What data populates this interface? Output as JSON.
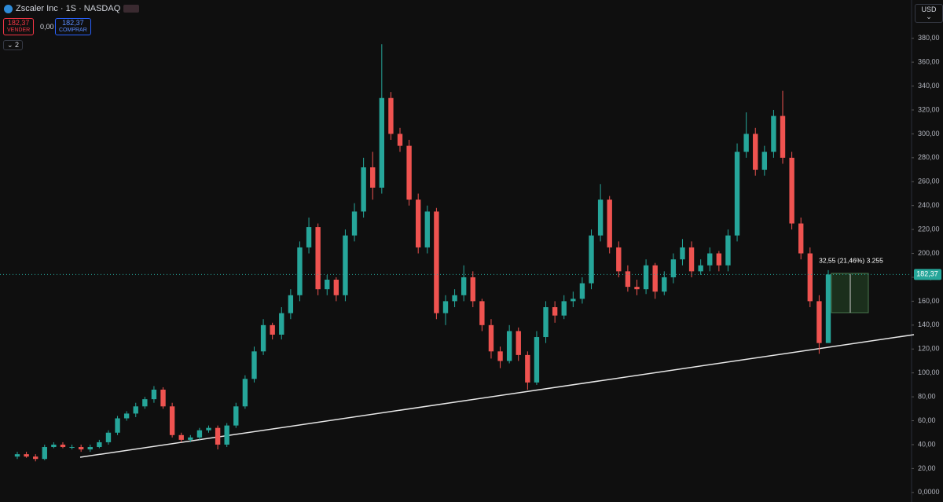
{
  "header": {
    "title": "Zscaler Inc · 1S · NASDAQ",
    "sell_price": "182,37",
    "sell_label": "VENDER",
    "spread": "0,00",
    "buy_price": "182,37",
    "buy_label": "COMPRAR",
    "indicators": "2",
    "currency": "USD"
  },
  "chart_data": {
    "type": "candlestick",
    "up_color": "#26a69a",
    "down_color": "#ef5350",
    "open": [
      30,
      32,
      30,
      28,
      38,
      40,
      38,
      38,
      36,
      38,
      42,
      50,
      62,
      66,
      72,
      78,
      86,
      72,
      48,
      44,
      46,
      52,
      54,
      40,
      56,
      72,
      95,
      118,
      140,
      132,
      150,
      165,
      205,
      222,
      170,
      178,
      165,
      215,
      235,
      272,
      255,
      330,
      300,
      290,
      245,
      205,
      235,
      150,
      160,
      165,
      180,
      160,
      140,
      118,
      110,
      135,
      115,
      92,
      130,
      155,
      148,
      160,
      162,
      175,
      215,
      245,
      205,
      185,
      172,
      170,
      190,
      168,
      180,
      195,
      205,
      185,
      190,
      200,
      190,
      215,
      285,
      300,
      270,
      285,
      315,
      280,
      225,
      200,
      160,
      125
    ],
    "high": [
      34,
      34,
      32,
      40,
      42,
      42,
      40,
      40,
      40,
      44,
      52,
      64,
      68,
      75,
      80,
      89,
      88,
      75,
      50,
      48,
      54,
      56,
      56,
      58,
      75,
      98,
      122,
      145,
      142,
      155,
      170,
      210,
      230,
      225,
      182,
      180,
      220,
      242,
      280,
      285,
      375,
      335,
      305,
      295,
      250,
      240,
      238,
      165,
      170,
      190,
      185,
      162,
      145,
      122,
      140,
      138,
      118,
      135,
      160,
      160,
      165,
      168,
      180,
      220,
      258,
      248,
      210,
      190,
      178,
      195,
      192,
      185,
      200,
      212,
      210,
      195,
      205,
      202,
      220,
      292,
      318,
      305,
      290,
      320,
      336,
      285,
      230,
      205,
      165,
      186
    ],
    "low": [
      28,
      29,
      26,
      27,
      37,
      37,
      36,
      34,
      34,
      37,
      40,
      48,
      60,
      63,
      70,
      75,
      70,
      46,
      42,
      42,
      44,
      50,
      36,
      38,
      54,
      70,
      92,
      115,
      128,
      128,
      145,
      160,
      200,
      165,
      165,
      160,
      160,
      210,
      230,
      245,
      250,
      295,
      285,
      240,
      200,
      200,
      145,
      140,
      155,
      160,
      155,
      135,
      112,
      104,
      108,
      110,
      86,
      90,
      125,
      142,
      145,
      155,
      158,
      170,
      210,
      200,
      180,
      168,
      165,
      166,
      162,
      165,
      175,
      190,
      180,
      182,
      185,
      185,
      185,
      210,
      280,
      265,
      265,
      280,
      275,
      220,
      195,
      155,
      116,
      128
    ],
    "close": [
      32,
      30,
      28,
      38,
      40,
      38,
      38,
      36,
      38,
      42,
      50,
      62,
      66,
      72,
      78,
      86,
      72,
      48,
      44,
      46,
      52,
      54,
      40,
      56,
      72,
      95,
      118,
      140,
      132,
      150,
      165,
      205,
      222,
      170,
      178,
      165,
      215,
      235,
      272,
      255,
      330,
      300,
      290,
      245,
      205,
      235,
      150,
      160,
      165,
      180,
      160,
      140,
      118,
      110,
      135,
      115,
      92,
      130,
      155,
      148,
      160,
      162,
      175,
      215,
      245,
      205,
      185,
      172,
      170,
      190,
      168,
      180,
      195,
      205,
      185,
      190,
      200,
      190,
      215,
      285,
      300,
      270,
      285,
      315,
      280,
      225,
      200,
      160,
      125,
      182.37
    ],
    "last_price": {
      "value": 182.37,
      "label": "182,37"
    },
    "measure_label": "32,55 (21,46%) 3.255",
    "ylim": [
      -8,
      412
    ],
    "yticks": [
      {
        "value": 0,
        "label": "0,0000"
      },
      {
        "value": 20,
        "label": "20,00"
      },
      {
        "value": 40,
        "label": "40,00"
      },
      {
        "value": 60,
        "label": "60,00"
      },
      {
        "value": 80,
        "label": "80,00"
      },
      {
        "value": 100,
        "label": "100,00"
      },
      {
        "value": 120,
        "label": "120,00"
      },
      {
        "value": 140,
        "label": "140,00"
      },
      {
        "value": 160,
        "label": "160,00"
      },
      {
        "value": 180,
        "label": "180,00"
      },
      {
        "value": 200,
        "label": "200,00"
      },
      {
        "value": 220,
        "label": "220,00"
      },
      {
        "value": 240,
        "label": "240,00"
      },
      {
        "value": 260,
        "label": "260,00"
      },
      {
        "value": 280,
        "label": "280,00"
      },
      {
        "value": 300,
        "label": "300,00"
      },
      {
        "value": 320,
        "label": "320,00"
      },
      {
        "value": 340,
        "label": "340,00"
      },
      {
        "value": 360,
        "label": "360,00"
      },
      {
        "value": 380,
        "label": "380,00"
      }
    ]
  }
}
